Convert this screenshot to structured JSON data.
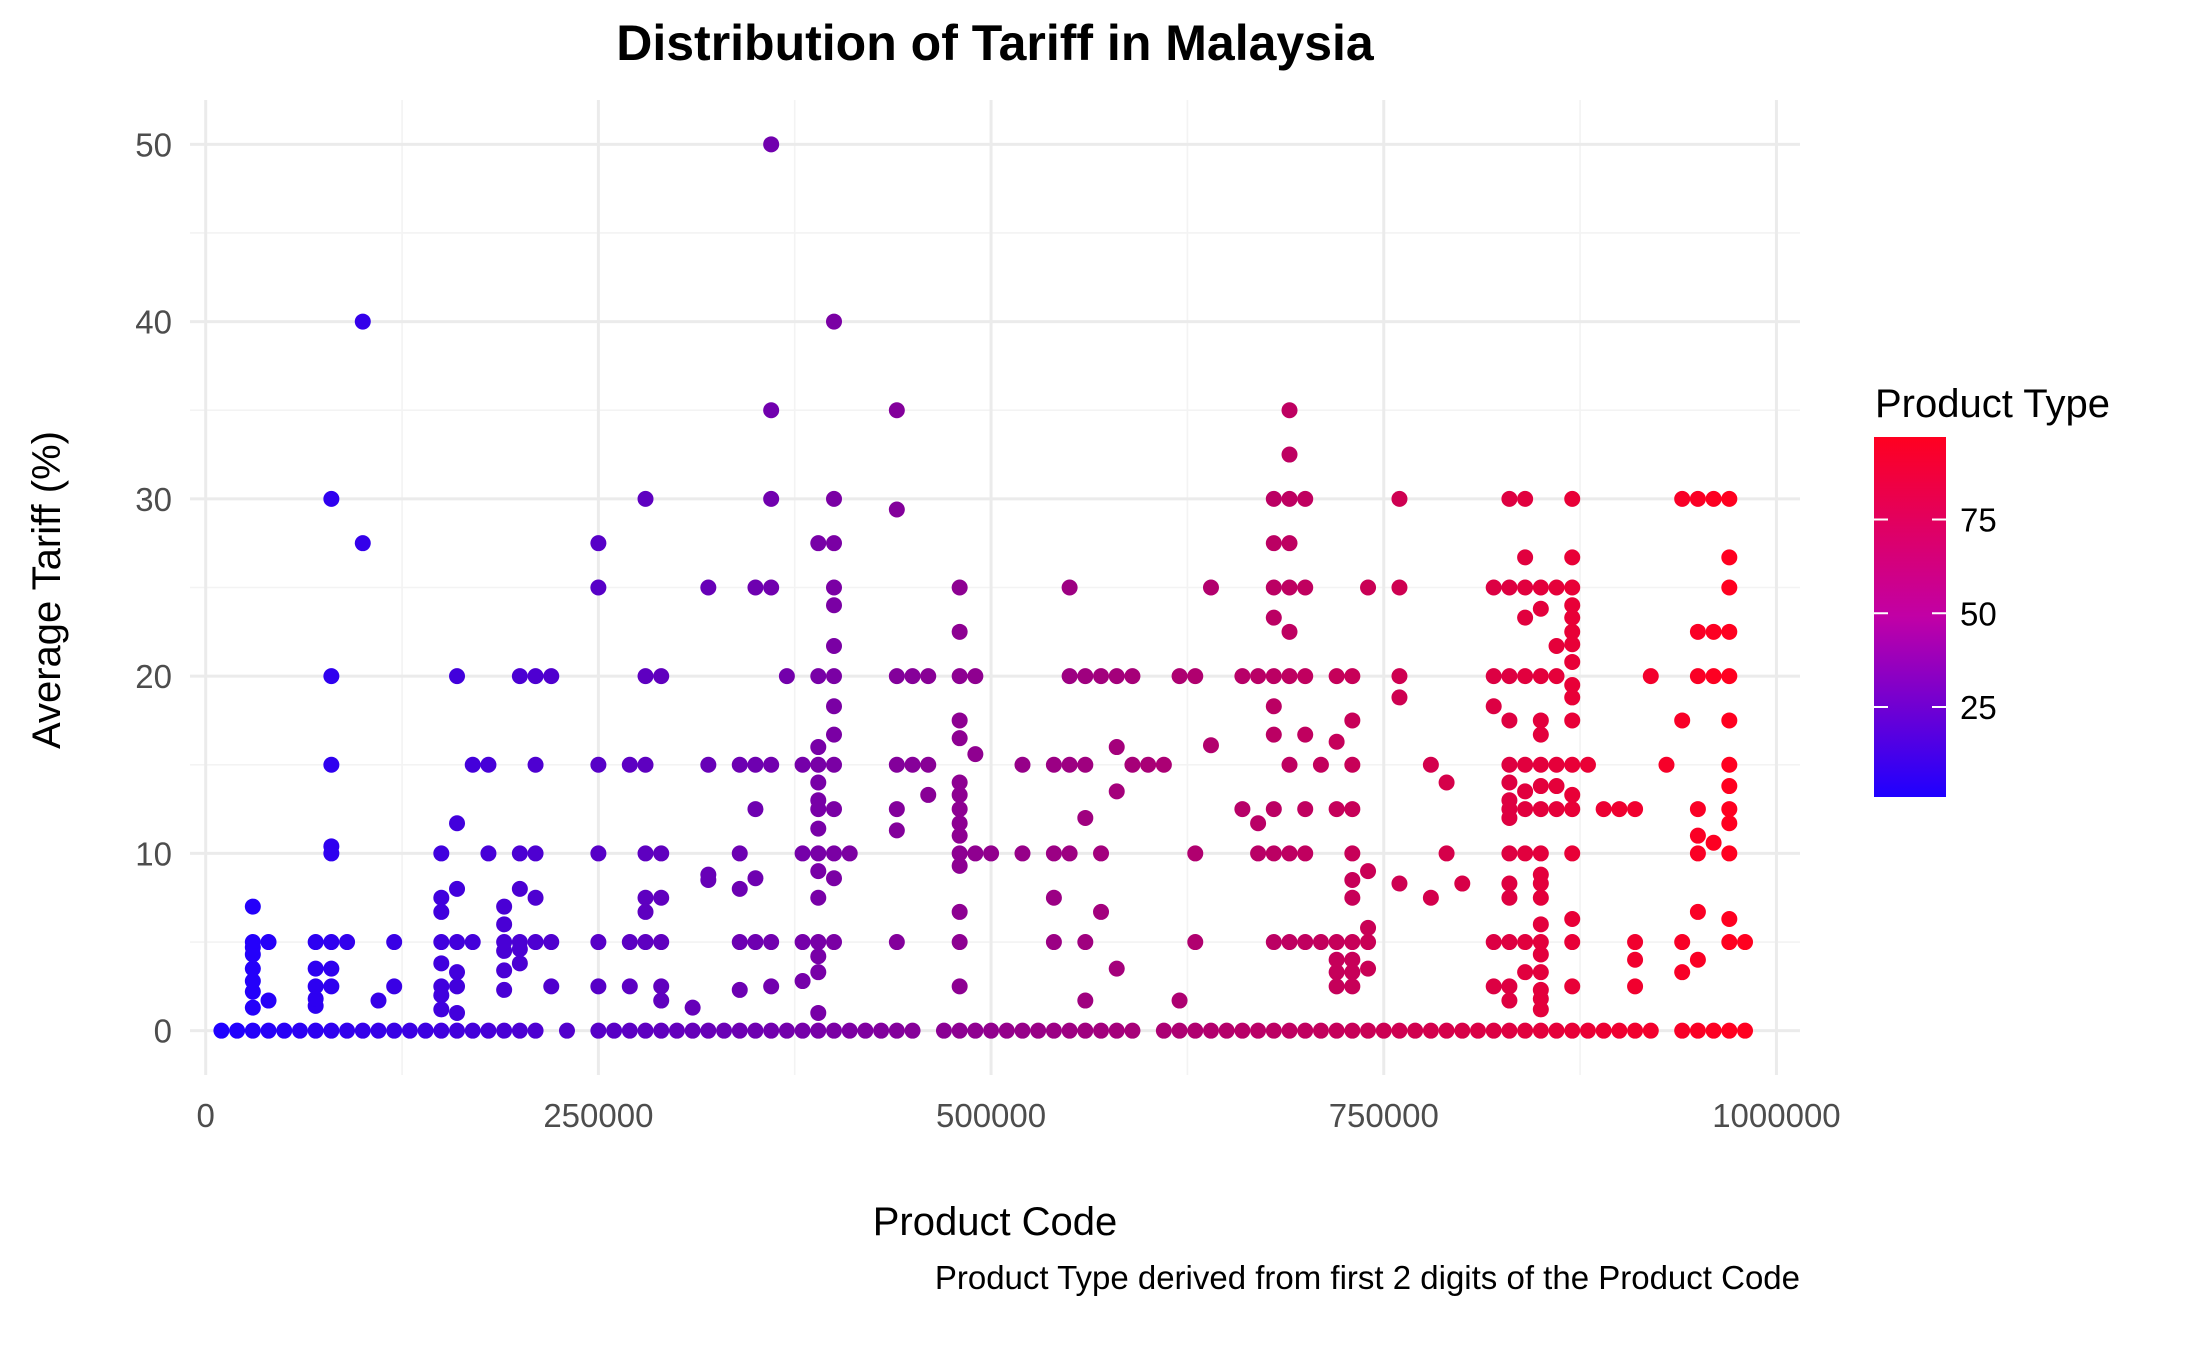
{
  "chart_data": {
    "type": "scatter",
    "title": "Distribution of Tariff in Malaysia",
    "xlabel": "Product Code",
    "ylabel": "Average Tariff (%)",
    "caption": "Product Type derived from first 2 digits of the Product Code",
    "xlim": [
      -10000,
      1015000
    ],
    "ylim": [
      -2.5,
      52.5
    ],
    "x_ticks": [
      0,
      250000,
      500000,
      750000,
      1000000
    ],
    "x_tick_labels": [
      "0",
      "250000",
      "500000",
      "750000",
      "1000000"
    ],
    "y_ticks": [
      0,
      10,
      20,
      30,
      40,
      50
    ],
    "y_tick_labels": [
      "0",
      "10",
      "20",
      "30",
      "40",
      "50"
    ],
    "grid": true,
    "legend": {
      "title": "Product Type",
      "position": "right",
      "type": "colorbar",
      "range": [
        1,
        97
      ],
      "ticks": [
        25,
        50,
        75
      ],
      "tick_labels": [
        "25",
        "50",
        "75"
      ],
      "low_color": "#1f00ff",
      "high_color": "#ff0020"
    },
    "color_by": "product_type",
    "point_groups": [
      {
        "x": 10000,
        "y": [
          0
        ]
      },
      {
        "x": 20000,
        "y": [
          0
        ]
      },
      {
        "x": 30000,
        "y": [
          0,
          1.3,
          2.2,
          2.8,
          3.5,
          4.3,
          4.7,
          5,
          7
        ]
      },
      {
        "x": 40000,
        "y": [
          0,
          1.7,
          5
        ]
      },
      {
        "x": 50000,
        "y": [
          0
        ]
      },
      {
        "x": 60000,
        "y": [
          0
        ]
      },
      {
        "x": 70000,
        "y": [
          0,
          1.4,
          1.8,
          2.5,
          3.5,
          5
        ]
      },
      {
        "x": 80000,
        "y": [
          0,
          2.5,
          3.5,
          5,
          10,
          10.4,
          15,
          20,
          30
        ]
      },
      {
        "x": 90000,
        "y": [
          0,
          5
        ]
      },
      {
        "x": 100000,
        "y": [
          0,
          27.5,
          40
        ]
      },
      {
        "x": 110000,
        "y": [
          0,
          1.7
        ]
      },
      {
        "x": 120000,
        "y": [
          0,
          2.5,
          5
        ]
      },
      {
        "x": 130000,
        "y": [
          0
        ]
      },
      {
        "x": 140000,
        "y": [
          0
        ]
      },
      {
        "x": 150000,
        "y": [
          0,
          1.2,
          2,
          2.5,
          3.8,
          5,
          6.7,
          7.5,
          10
        ]
      },
      {
        "x": 160000,
        "y": [
          0,
          1,
          2.5,
          3.3,
          5,
          8,
          11.7,
          20
        ]
      },
      {
        "x": 170000,
        "y": [
          0,
          5,
          15
        ]
      },
      {
        "x": 180000,
        "y": [
          0,
          10,
          15
        ]
      },
      {
        "x": 190000,
        "y": [
          0,
          2.3,
          3.4,
          4.5,
          5,
          6,
          7
        ]
      },
      {
        "x": 200000,
        "y": [
          0,
          3.8,
          4.6,
          5,
          8,
          10,
          20
        ]
      },
      {
        "x": 210000,
        "y": [
          0,
          5,
          7.5,
          10,
          15,
          20
        ]
      },
      {
        "x": 220000,
        "y": [
          2.5,
          5,
          20
        ]
      },
      {
        "x": 230000,
        "y": [
          0
        ]
      },
      {
        "x": 250000,
        "y": [
          0,
          2.5,
          5,
          10,
          15,
          25,
          27.5
        ]
      },
      {
        "x": 260000,
        "y": [
          0
        ]
      },
      {
        "x": 270000,
        "y": [
          0,
          2.5,
          5,
          15
        ]
      },
      {
        "x": 280000,
        "y": [
          0,
          5,
          6.7,
          7.5,
          10,
          15,
          20,
          30
        ]
      },
      {
        "x": 290000,
        "y": [
          0,
          1.7,
          2.5,
          5,
          7.5,
          10,
          20
        ]
      },
      {
        "x": 300000,
        "y": [
          0
        ]
      },
      {
        "x": 310000,
        "y": [
          0,
          1.3
        ]
      },
      {
        "x": 320000,
        "y": [
          0,
          8.5,
          8.8,
          15,
          25
        ]
      },
      {
        "x": 330000,
        "y": [
          0
        ]
      },
      {
        "x": 340000,
        "y": [
          0,
          2.3,
          5,
          8,
          10,
          15
        ]
      },
      {
        "x": 350000,
        "y": [
          0,
          5,
          8.6,
          12.5,
          15,
          25
        ]
      },
      {
        "x": 360000,
        "y": [
          0,
          2.5,
          5,
          15,
          25,
          30,
          35,
          50
        ]
      },
      {
        "x": 370000,
        "y": [
          0,
          20
        ]
      },
      {
        "x": 380000,
        "y": [
          0,
          2.8,
          5,
          10,
          15
        ]
      },
      {
        "x": 390000,
        "y": [
          0,
          1,
          3.3,
          4.2,
          5,
          7.5,
          9,
          10,
          11.4,
          12.5,
          13,
          14,
          15,
          16,
          20,
          27.5
        ]
      },
      {
        "x": 400000,
        "y": [
          0,
          5,
          8.6,
          10,
          12.5,
          15,
          16.7,
          18.3,
          20,
          21.7,
          24,
          25,
          27.5,
          30,
          40
        ]
      },
      {
        "x": 410000,
        "y": [
          0,
          10
        ]
      },
      {
        "x": 420000,
        "y": [
          0
        ]
      },
      {
        "x": 430000,
        "y": [
          0
        ]
      },
      {
        "x": 440000,
        "y": [
          0,
          5,
          11.3,
          12.5,
          15,
          20,
          29.4,
          35
        ]
      },
      {
        "x": 450000,
        "y": [
          0,
          15,
          20
        ]
      },
      {
        "x": 460000,
        "y": [
          13.3,
          15,
          20
        ]
      },
      {
        "x": 470000,
        "y": [
          0
        ]
      },
      {
        "x": 480000,
        "y": [
          0,
          2.5,
          5,
          6.7,
          9.3,
          10,
          11,
          11.7,
          12.5,
          13.3,
          14,
          16.5,
          17.5,
          20,
          22.5,
          25
        ]
      },
      {
        "x": 490000,
        "y": [
          0,
          10,
          15.6,
          20
        ]
      },
      {
        "x": 500000,
        "y": [
          0,
          10
        ]
      },
      {
        "x": 510000,
        "y": [
          0
        ]
      },
      {
        "x": 520000,
        "y": [
          0,
          10,
          15
        ]
      },
      {
        "x": 530000,
        "y": [
          0
        ]
      },
      {
        "x": 540000,
        "y": [
          0,
          5,
          7.5,
          10,
          15
        ]
      },
      {
        "x": 550000,
        "y": [
          0,
          10,
          15,
          20,
          25
        ]
      },
      {
        "x": 560000,
        "y": [
          0,
          1.7,
          5,
          12,
          15,
          20
        ]
      },
      {
        "x": 570000,
        "y": [
          0,
          6.7,
          10,
          20
        ]
      },
      {
        "x": 580000,
        "y": [
          0,
          3.5,
          13.5,
          16,
          20
        ]
      },
      {
        "x": 590000,
        "y": [
          0,
          15,
          20
        ]
      },
      {
        "x": 600000,
        "y": [
          15
        ]
      },
      {
        "x": 610000,
        "y": [
          0,
          15
        ]
      },
      {
        "x": 620000,
        "y": [
          0,
          1.7,
          20
        ]
      },
      {
        "x": 630000,
        "y": [
          0,
          5,
          10,
          20
        ]
      },
      {
        "x": 640000,
        "y": [
          0,
          16.1,
          25
        ]
      },
      {
        "x": 650000,
        "y": [
          0
        ]
      },
      {
        "x": 660000,
        "y": [
          0,
          12.5,
          20
        ]
      },
      {
        "x": 670000,
        "y": [
          0,
          10,
          11.7,
          20
        ]
      },
      {
        "x": 680000,
        "y": [
          0,
          5,
          10,
          12.5,
          16.7,
          18.3,
          20,
          23.3,
          25,
          27.5,
          30
        ]
      },
      {
        "x": 690000,
        "y": [
          0,
          5,
          10,
          15,
          20,
          22.5,
          25,
          27.5,
          30,
          32.5,
          35
        ]
      },
      {
        "x": 700000,
        "y": [
          0,
          5,
          10,
          12.5,
          16.7,
          20,
          25,
          30
        ]
      },
      {
        "x": 710000,
        "y": [
          0,
          5,
          15
        ]
      },
      {
        "x": 720000,
        "y": [
          0,
          2.5,
          3.3,
          4,
          5,
          12.5,
          16.3,
          20
        ]
      },
      {
        "x": 730000,
        "y": [
          0,
          2.5,
          3.3,
          4,
          5,
          7.5,
          8.5,
          10,
          12.5,
          15,
          17.5,
          20
        ]
      },
      {
        "x": 740000,
        "y": [
          0,
          3.5,
          5,
          5.8,
          9,
          25
        ]
      },
      {
        "x": 750000,
        "y": [
          0
        ]
      },
      {
        "x": 760000,
        "y": [
          0,
          8.3,
          18.8,
          20,
          25,
          30
        ]
      },
      {
        "x": 770000,
        "y": [
          0
        ]
      },
      {
        "x": 780000,
        "y": [
          0,
          7.5,
          15
        ]
      },
      {
        "x": 790000,
        "y": [
          0,
          10,
          14
        ]
      },
      {
        "x": 800000,
        "y": [
          0,
          8.3
        ]
      },
      {
        "x": 810000,
        "y": [
          0
        ]
      },
      {
        "x": 820000,
        "y": [
          0,
          2.5,
          5,
          18.3,
          20,
          25
        ]
      },
      {
        "x": 830000,
        "y": [
          0,
          1.7,
          2.5,
          5,
          7.5,
          8.3,
          10,
          12,
          12.5,
          13,
          14,
          15,
          17.5,
          20,
          25,
          30
        ]
      },
      {
        "x": 840000,
        "y": [
          0,
          3.3,
          5,
          10,
          12.5,
          13.5,
          15,
          20,
          23.3,
          25,
          26.7,
          30
        ]
      },
      {
        "x": 850000,
        "y": [
          0,
          1.2,
          1.8,
          2.3,
          3.3,
          4.3,
          5,
          6,
          7.5,
          8.3,
          8.8,
          10,
          12.5,
          13.8,
          15,
          16.7,
          17.5,
          20,
          23.8,
          25
        ]
      },
      {
        "x": 860000,
        "y": [
          0,
          12.5,
          13.8,
          15,
          20,
          21.7,
          25
        ]
      },
      {
        "x": 870000,
        "y": [
          0,
          2.5,
          5,
          6.3,
          10,
          12.5,
          13.3,
          15,
          17.5,
          18.8,
          19.5,
          20.8,
          21.8,
          22.5,
          23.3,
          24,
          25,
          26.7,
          30
        ]
      },
      {
        "x": 880000,
        "y": [
          0,
          15
        ]
      },
      {
        "x": 890000,
        "y": [
          0,
          12.5
        ]
      },
      {
        "x": 900000,
        "y": [
          0,
          12.5
        ]
      },
      {
        "x": 910000,
        "y": [
          0,
          2.5,
          4,
          5,
          12.5
        ]
      },
      {
        "x": 920000,
        "y": [
          0,
          20
        ]
      },
      {
        "x": 930000,
        "y": [
          15
        ]
      },
      {
        "x": 940000,
        "y": [
          0,
          3.3,
          5,
          17.5,
          30
        ]
      },
      {
        "x": 950000,
        "y": [
          0,
          4,
          6.7,
          10,
          11,
          12.5,
          20,
          22.5,
          30
        ]
      },
      {
        "x": 960000,
        "y": [
          0,
          10.6,
          20,
          22.5,
          30
        ]
      },
      {
        "x": 970000,
        "y": [
          0,
          5,
          6.3,
          10,
          11.7,
          12.5,
          13.8,
          15,
          17.5,
          20,
          22.5,
          25,
          26.7,
          30
        ]
      },
      {
        "x": 980000,
        "y": [
          0,
          5
        ]
      }
    ]
  }
}
